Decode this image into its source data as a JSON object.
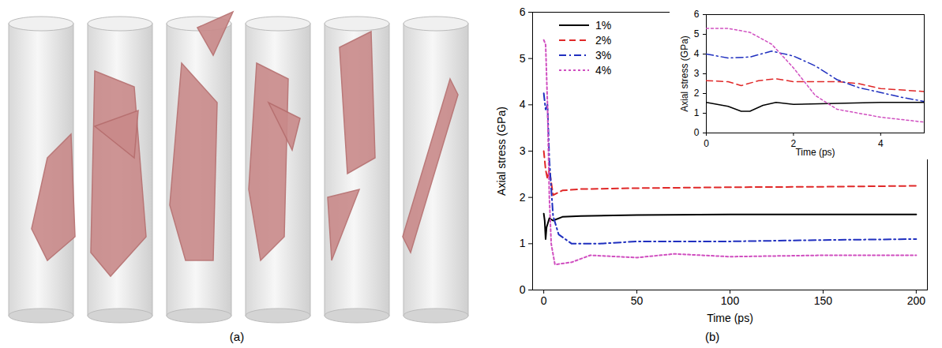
{
  "panel_labels": [
    "(a)",
    "(b)"
  ],
  "chart_data": [
    {
      "type": "line",
      "xlabel": "Time (ps)",
      "ylabel": "Axial stress (GPa)",
      "xlim": [
        -6,
        206
      ],
      "ylim": [
        0,
        6
      ],
      "xticks": [
        0,
        50,
        100,
        150,
        200
      ],
      "yticks": [
        0,
        1,
        2,
        3,
        4,
        5,
        6
      ],
      "legend": "upper left",
      "series": [
        {
          "name": "1%",
          "color": "#000000",
          "line_style": "solid",
          "x": [
            0,
            0.5,
            1,
            1.5,
            3,
            5,
            10,
            20,
            50,
            100,
            150,
            200
          ],
          "values": [
            1.65,
            1.5,
            1.1,
            1.35,
            1.55,
            1.5,
            1.58,
            1.6,
            1.62,
            1.63,
            1.63,
            1.63
          ]
        },
        {
          "name": "2%",
          "color": "#e02828",
          "line_style": "dashed",
          "x": [
            0,
            1,
            2,
            3,
            5,
            10,
            20,
            50,
            100,
            150,
            200
          ],
          "values": [
            3.0,
            2.6,
            2.4,
            2.6,
            2.05,
            2.15,
            2.18,
            2.2,
            2.22,
            2.23,
            2.25
          ]
        },
        {
          "name": "3%",
          "color": "#1f2fbf",
          "line_style": "dashdot",
          "x": [
            0,
            1,
            2,
            3,
            5,
            8,
            15,
            30,
            50,
            100,
            150,
            200
          ],
          "values": [
            4.25,
            3.9,
            4.0,
            2.8,
            1.6,
            1.2,
            1.0,
            1.0,
            1.05,
            1.05,
            1.08,
            1.1
          ]
        },
        {
          "name": "4%",
          "color": "#d04fc0",
          "line_style": "dotted",
          "x": [
            0,
            1,
            2,
            3,
            4,
            6,
            15,
            25,
            50,
            70,
            100,
            150,
            200
          ],
          "values": [
            5.4,
            5.3,
            4.0,
            2.0,
            1.0,
            0.55,
            0.6,
            0.75,
            0.7,
            0.78,
            0.72,
            0.75,
            0.75
          ]
        }
      ]
    },
    {
      "type": "line",
      "xlabel": "Time (ps)",
      "ylabel": "Axial stress (GPa)",
      "xlim": [
        0,
        5
      ],
      "ylim": [
        0,
        6
      ],
      "xticks": [
        0,
        2,
        4
      ],
      "yticks": [
        0,
        1,
        2,
        3,
        4,
        5,
        6
      ],
      "series": [
        {
          "color": "#000000",
          "line_style": "solid",
          "x": [
            0,
            0.5,
            0.8,
            1.0,
            1.3,
            1.6,
            2,
            3,
            4,
            5
          ],
          "values": [
            1.55,
            1.35,
            1.1,
            1.1,
            1.4,
            1.55,
            1.45,
            1.5,
            1.55,
            1.55
          ]
        },
        {
          "color": "#e02828",
          "line_style": "dashed",
          "x": [
            0,
            0.5,
            0.8,
            1.2,
            1.6,
            2,
            3,
            3.5,
            4,
            5
          ],
          "values": [
            2.65,
            2.6,
            2.4,
            2.65,
            2.75,
            2.6,
            2.6,
            2.5,
            2.25,
            2.1
          ]
        },
        {
          "color": "#1f2fbf",
          "line_style": "dashdot",
          "x": [
            0,
            0.5,
            1,
            1.5,
            2,
            2.5,
            3,
            3.5,
            4,
            4.5,
            5
          ],
          "values": [
            4.0,
            3.8,
            3.85,
            4.15,
            3.9,
            3.4,
            2.7,
            2.3,
            2.05,
            1.8,
            1.6
          ]
        },
        {
          "color": "#d04fc0",
          "line_style": "dotted",
          "x": [
            0,
            0.5,
            1,
            1.5,
            2,
            2.5,
            3,
            4,
            5
          ],
          "values": [
            5.3,
            5.3,
            5.1,
            4.5,
            3.3,
            1.9,
            1.2,
            0.8,
            0.55
          ]
        }
      ]
    }
  ]
}
